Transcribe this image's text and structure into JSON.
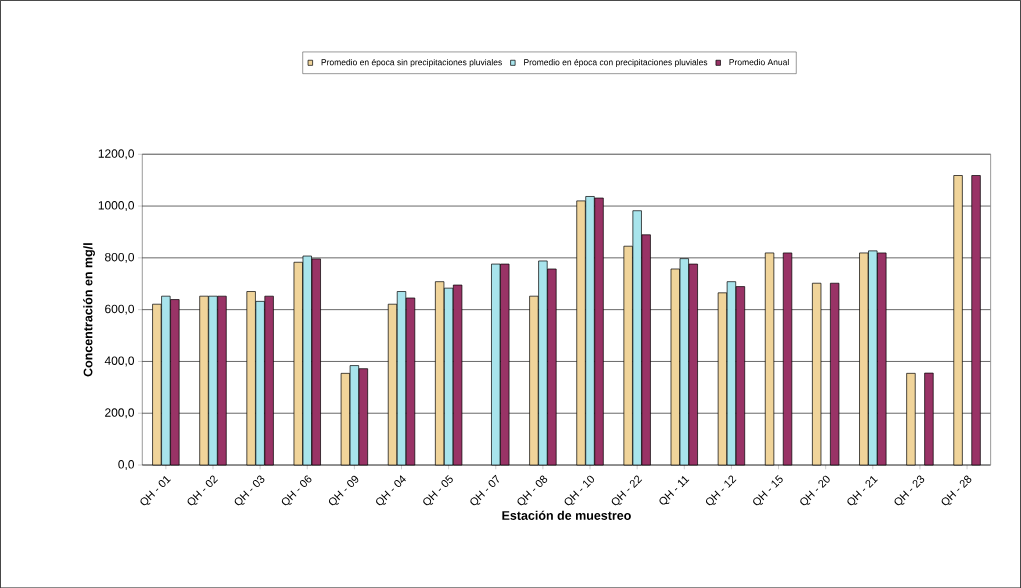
{
  "chart_data": {
    "type": "bar",
    "xlabel": "Estación de muestreo",
    "ylabel": "Concentración en mg/l",
    "categories": [
      "QH - 01",
      "QH - 02",
      "QH - 03",
      "QH - 06",
      "QH - 09",
      "QH - 04",
      "QH - 05",
      "QH - 07",
      "QH - 08",
      "QH - 10",
      "QH - 22",
      "QH - 11",
      "QH - 12",
      "QH - 15",
      "QH - 20",
      "QH - 21",
      "QH - 23",
      "QH - 28"
    ],
    "series": [
      {
        "name": "Promedio en época sin precipitaciones pluviales",
        "color": "#f0d49a",
        "values": [
          621,
          652,
          670,
          783,
          354,
          621,
          708,
          null,
          652,
          1020,
          845,
          757,
          665,
          819,
          702,
          819,
          354,
          1118
        ]
      },
      {
        "name": "Promedio en época con precipitaciones pluviales",
        "color": "#a8e4ec",
        "values": [
          652,
          652,
          632,
          807,
          384,
          670,
          683,
          776,
          788,
          1037,
          982,
          797,
          708,
          null,
          null,
          827,
          null,
          null
        ]
      },
      {
        "name": "Promedio Anual",
        "color": "#993366",
        "values": [
          639,
          652,
          652,
          796,
          372,
          645,
          695,
          776,
          757,
          1031,
          889,
          776,
          689,
          819,
          702,
          819,
          355,
          1118
        ]
      }
    ],
    "ylim": [
      0,
      1200
    ],
    "yticks": [
      {
        "value": 0,
        "label": "0,0"
      },
      {
        "value": 200,
        "label": "200,0"
      },
      {
        "value": 400,
        "label": "400,0"
      },
      {
        "value": 600,
        "label": "600,0"
      },
      {
        "value": 800,
        "label": "800,0"
      },
      {
        "value": 1000,
        "label": "1000,0"
      },
      {
        "value": 1200,
        "label": "1200,0"
      }
    ],
    "grid": "y",
    "legend": "top"
  }
}
